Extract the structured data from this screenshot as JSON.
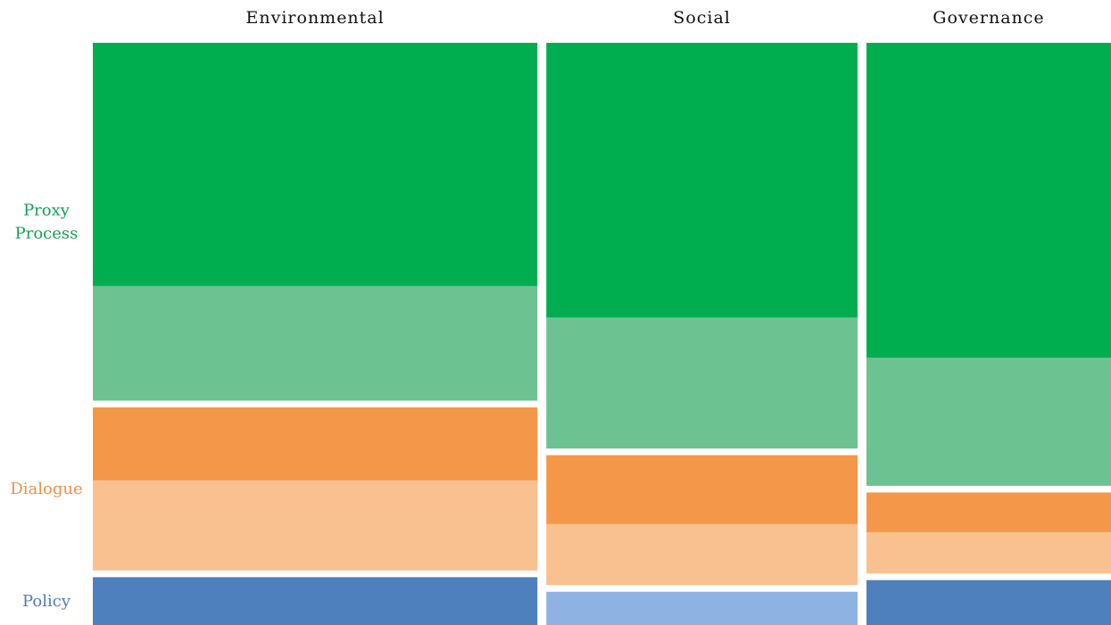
{
  "chart_data": {
    "type": "mosaic",
    "columns": [
      {
        "name": "Environmental",
        "width": 1.0,
        "segments": [
          {
            "group": "Proxy Process",
            "values": [
              0.417,
              0.196
            ],
            "colors": [
              "#00AE4F",
              "#6DC292"
            ]
          },
          {
            "group": "Dialogue",
            "values": [
              0.125,
              0.154
            ],
            "colors": [
              "#F59748",
              "#F9C190"
            ]
          },
          {
            "group": "Policy",
            "values": [
              0.082
            ],
            "colors": [
              "#4D80BC"
            ]
          }
        ]
      },
      {
        "name": "Social",
        "width": 0.7,
        "segments": [
          {
            "group": "Proxy Process",
            "values": [
              0.471,
              0.224
            ],
            "colors": [
              "#00AE4F",
              "#6DC292"
            ]
          },
          {
            "group": "Dialogue",
            "values": [
              0.118,
              0.104
            ],
            "colors": [
              "#F59748",
              "#F9C190"
            ]
          },
          {
            "group": "Policy",
            "values": [
              0.057
            ],
            "colors": [
              "#8EB3E2"
            ]
          }
        ]
      },
      {
        "name": "Governance",
        "width": 0.55,
        "segments": [
          {
            "group": "Proxy Process",
            "values": [
              0.54,
              0.219
            ],
            "colors": [
              "#00AE4F",
              "#6DC292"
            ]
          },
          {
            "group": "Dialogue",
            "values": [
              0.068,
              0.07
            ],
            "colors": [
              "#F59748",
              "#F9C190"
            ]
          },
          {
            "group": "Policy",
            "values": [
              0.077
            ],
            "colors": [
              "#4D80BC"
            ]
          }
        ]
      }
    ],
    "row_labels": [
      {
        "text": "Proxy\nProcess",
        "group": "Proxy Process",
        "color": "#13A052"
      },
      {
        "text": "Dialogue",
        "group": "Dialogue",
        "color": "#F0904A"
      },
      {
        "text": "Policy",
        "group": "Policy",
        "color": "#4F7DB8"
      }
    ],
    "legend": "none",
    "grid": false
  }
}
